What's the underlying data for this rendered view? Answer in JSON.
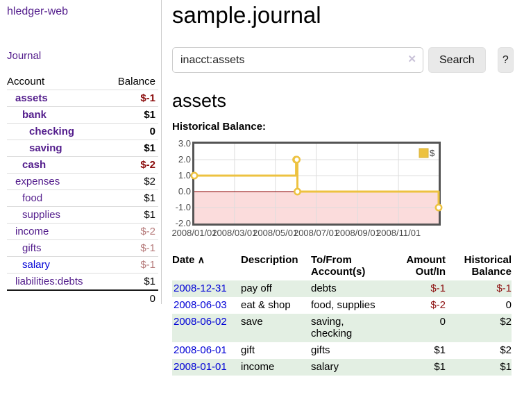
{
  "app": {
    "brand": "hledger-web",
    "nav_journal": "Journal"
  },
  "colors": {
    "link_purple": "#531d8c",
    "link_blue": "#0000d6",
    "negative_strong": "#8b0d0d",
    "negative_soft": "#b57979",
    "row_stripe_green": "#e3efe3",
    "series_gold": "#edc240"
  },
  "sidebar": {
    "accounts_header": {
      "account": "Account",
      "balance": "Balance"
    },
    "accounts": [
      {
        "name": "assets",
        "depth": 1,
        "bold": true,
        "balance": "$-1",
        "balance_class": "neg-strong",
        "link_class": ""
      },
      {
        "name": "bank",
        "depth": 2,
        "bold": true,
        "balance": "$1",
        "balance_class": "pos",
        "link_class": ""
      },
      {
        "name": "checking",
        "depth": 3,
        "bold": true,
        "balance": "0",
        "balance_class": "pos",
        "link_class": ""
      },
      {
        "name": "saving",
        "depth": 3,
        "bold": true,
        "balance": "$1",
        "balance_class": "pos",
        "link_class": ""
      },
      {
        "name": "cash",
        "depth": 2,
        "bold": true,
        "balance": "$-2",
        "balance_class": "neg-strong",
        "link_class": ""
      },
      {
        "name": "expenses",
        "depth": 1,
        "bold": false,
        "balance": "$2",
        "balance_class": "pos",
        "link_class": ""
      },
      {
        "name": "food",
        "depth": 2,
        "bold": false,
        "balance": "$1",
        "balance_class": "pos",
        "link_class": ""
      },
      {
        "name": "supplies",
        "depth": 2,
        "bold": false,
        "balance": "$1",
        "balance_class": "pos",
        "link_class": ""
      },
      {
        "name": "income",
        "depth": 1,
        "bold": false,
        "balance": "$-2",
        "balance_class": "neg-soft",
        "link_class": ""
      },
      {
        "name": "gifts",
        "depth": 2,
        "bold": false,
        "balance": "$-1",
        "balance_class": "neg-soft",
        "link_class": ""
      },
      {
        "name": "salary",
        "depth": 2,
        "bold": false,
        "balance": "$-1",
        "balance_class": "neg-soft",
        "link_class": "blue"
      },
      {
        "name": "liabilities:debts",
        "depth": 1,
        "bold": false,
        "balance": "$1",
        "balance_class": "pos",
        "link_class": ""
      }
    ],
    "total": "0"
  },
  "header": {
    "title": "sample.journal"
  },
  "search": {
    "value": "inacct:assets",
    "clear_icon": "✕",
    "button": "Search",
    "help_button": "?"
  },
  "account_page": {
    "title": "assets",
    "chart_label": "Historical Balance:"
  },
  "chart_data": {
    "type": "line",
    "step": true,
    "title": "Historical Balance",
    "series": [
      {
        "name": "$",
        "x": [
          "2008-01-01",
          "2008-06-01",
          "2008-06-02",
          "2008-06-03",
          "2008-12-31"
        ],
        "y": [
          1,
          2,
          2,
          0,
          -1
        ]
      }
    ],
    "xrange": [
      "2008-01-01",
      "2008-12-31"
    ],
    "ylim": [
      -2,
      3
    ],
    "yticks": [
      3,
      2,
      1,
      0,
      -1,
      -2
    ],
    "ytick_labels": [
      "3.0",
      "2.0",
      "1.0",
      "0.0",
      "-1.0",
      "-2.0"
    ],
    "xticks": [
      "2008-01-01",
      "2008-03-01",
      "2008-05-01",
      "2008-07-01",
      "2008-09-01",
      "2008-11-01"
    ],
    "xtick_labels": [
      "2008/01/01",
      "2008/03/01",
      "2008/05/01",
      "2008/07/01",
      "2008/09/01",
      "2008/11/01"
    ],
    "legend": {
      "position": "top-right",
      "label": "$"
    },
    "grid": true,
    "colors": {
      "series": "#edc240",
      "marker_fill": "#ffffff",
      "negative_region": "#fbdcdc",
      "zero_line": "#8b0000",
      "grid": "#dddddd",
      "border": "#545454",
      "axis_text": "#4a4a4a"
    }
  },
  "register": {
    "columns": {
      "date": "Date",
      "sort_icon": "∧",
      "description": "Description",
      "accounts": "To/From Account(s)",
      "amount": "Amount Out/In",
      "balance": "Historical Balance"
    },
    "rows": [
      {
        "date": "2008-12-31",
        "description": "pay off",
        "accounts": "debts",
        "amount": "$-1",
        "amount_neg": true,
        "balance": "$-1",
        "balance_neg": true
      },
      {
        "date": "2008-06-03",
        "description": "eat & shop",
        "accounts": "food, supplies",
        "amount": "$-2",
        "amount_neg": true,
        "balance": "0",
        "balance_neg": false
      },
      {
        "date": "2008-06-02",
        "description": "save",
        "accounts": "saving, checking",
        "amount": "0",
        "amount_neg": false,
        "balance": "$2",
        "balance_neg": false
      },
      {
        "date": "2008-06-01",
        "description": "gift",
        "accounts": "gifts",
        "amount": "$1",
        "amount_neg": false,
        "balance": "$2",
        "balance_neg": false
      },
      {
        "date": "2008-01-01",
        "description": "income",
        "accounts": "salary",
        "amount": "$1",
        "amount_neg": false,
        "balance": "$1",
        "balance_neg": false
      }
    ]
  }
}
